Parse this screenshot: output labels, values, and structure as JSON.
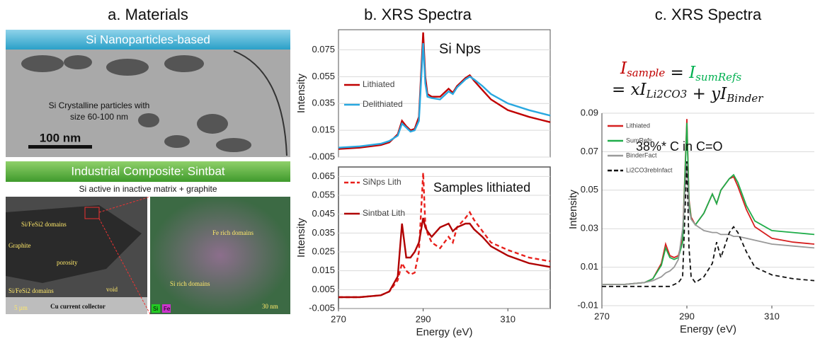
{
  "headings": [
    "a. Materials",
    "b. XRS Spectra",
    "c. XRS Spectra"
  ],
  "panel_a": {
    "banner_top": "Si Nanoparticles-based",
    "tem_note_1": "Si Crystalline particles with",
    "tem_note_2": "size 60-100 nm",
    "tem_scale": "100 nm",
    "banner_bottom": "Industrial Composite: Sintbat",
    "sem_caption": "Si active in inactive matrix + graphite",
    "sem_labels": [
      "Si/FeSi2 domains",
      "Graphite",
      "porosity",
      "Si/FeSi2 domains",
      "void",
      "Cu current collector"
    ],
    "sem_scale": "5 µm",
    "eds_labels": [
      "Fe rich domains",
      "Si rich domains"
    ],
    "eds_legend": [
      "Si",
      "Fe"
    ],
    "eds_scale": "30 nm"
  },
  "chart_data": [
    {
      "type": "line",
      "annotation": "Si Nps",
      "ylabel": "Intensity",
      "grid": true,
      "legend": "left",
      "xlim": [
        270,
        320
      ],
      "ylim": [
        -0.005,
        0.09
      ],
      "yticks": [
        -0.005,
        0.015,
        0.035,
        0.055,
        0.075
      ],
      "x": [
        270,
        275,
        280,
        282,
        284,
        285,
        286,
        287,
        288,
        289,
        290,
        290.5,
        291,
        292,
        294,
        296,
        297,
        298,
        300,
        301,
        302,
        304,
        306,
        310,
        315,
        320
      ],
      "series": [
        {
          "name": "Lithiated",
          "color": "#c00000",
          "dashed": false,
          "values": [
            0.001,
            0.002,
            0.004,
            0.006,
            0.012,
            0.022,
            0.018,
            0.015,
            0.016,
            0.025,
            0.088,
            0.055,
            0.042,
            0.04,
            0.04,
            0.046,
            0.043,
            0.048,
            0.054,
            0.056,
            0.052,
            0.045,
            0.038,
            0.03,
            0.025,
            0.021
          ]
        },
        {
          "name": "Delithiated",
          "color": "#29a8e0",
          "dashed": false,
          "values": [
            0.002,
            0.003,
            0.005,
            0.007,
            0.011,
            0.02,
            0.017,
            0.014,
            0.015,
            0.022,
            0.08,
            0.05,
            0.04,
            0.039,
            0.038,
            0.044,
            0.042,
            0.047,
            0.053,
            0.055,
            0.053,
            0.048,
            0.042,
            0.035,
            0.03,
            0.026
          ]
        }
      ]
    },
    {
      "type": "line",
      "annotation": "Samples lithiated",
      "ylabel": "Intensity",
      "xlabel": "Energy (eV)",
      "grid": true,
      "legend": "left",
      "xlim": [
        270,
        320
      ],
      "xticks": [
        270,
        290,
        310
      ],
      "ylim": [
        -0.005,
        0.07
      ],
      "yticks": [
        -0.005,
        0.005,
        0.015,
        0.025,
        0.035,
        0.045,
        0.055,
        0.065
      ],
      "x": [
        270,
        275,
        280,
        282,
        284,
        285,
        286,
        287,
        288,
        289,
        290,
        290.5,
        291,
        292,
        294,
        296,
        297,
        298,
        300,
        301,
        302,
        304,
        306,
        310,
        315,
        320
      ],
      "series": [
        {
          "name": "SiNps Lith",
          "color": "#e8201c",
          "dashed": true,
          "values": [
            0.001,
            0.001,
            0.002,
            0.004,
            0.01,
            0.019,
            0.015,
            0.013,
            0.014,
            0.025,
            0.067,
            0.04,
            0.035,
            0.03,
            0.027,
            0.033,
            0.03,
            0.038,
            0.043,
            0.046,
            0.042,
            0.036,
            0.03,
            0.026,
            0.022,
            0.02
          ]
        },
        {
          "name": "Sintbat Lith",
          "color": "#b00000",
          "dashed": false,
          "values": [
            0.001,
            0.001,
            0.002,
            0.004,
            0.012,
            0.04,
            0.022,
            0.022,
            0.025,
            0.03,
            0.043,
            0.038,
            0.036,
            0.033,
            0.038,
            0.04,
            0.036,
            0.038,
            0.04,
            0.04,
            0.037,
            0.033,
            0.028,
            0.023,
            0.019,
            0.017
          ]
        }
      ]
    },
    {
      "type": "line",
      "annotation": "38%* C in C=O",
      "ylabel": "Intensity",
      "xlabel": "Energy (eV)",
      "grid": true,
      "legend": "top-left",
      "equation": [
        [
          {
            "text": "I",
            "sub": "sample",
            "color": "#c00000"
          },
          {
            "text": " = ",
            "color": "#111111"
          },
          {
            "text": "I",
            "sub": "sumRefs",
            "color": "#00b050"
          }
        ],
        [
          {
            "text": "= xI",
            "sub": "Li2CO3",
            "color": "#111111"
          },
          {
            "text": " + yI",
            "sub": "Binder",
            "color": "#111111"
          }
        ]
      ],
      "xlim": [
        270,
        320
      ],
      "xticks": [
        270,
        290,
        310
      ],
      "ylim": [
        -0.01,
        0.09
      ],
      "yticks": [
        -0.01,
        0.01,
        0.03,
        0.05,
        0.07,
        0.09
      ],
      "x": [
        270,
        275,
        280,
        282,
        284,
        285,
        286,
        287,
        288,
        289,
        290,
        290.5,
        291,
        292,
        294,
        296,
        297,
        298,
        300,
        301,
        302,
        304,
        306,
        310,
        315,
        320
      ],
      "series": [
        {
          "name": "Lithiated",
          "color": "#d62020",
          "dashed": false,
          "values": [
            0.001,
            0.001,
            0.002,
            0.004,
            0.012,
            0.022,
            0.016,
            0.015,
            0.016,
            0.025,
            0.087,
            0.045,
            0.036,
            0.032,
            0.038,
            0.048,
            0.043,
            0.05,
            0.056,
            0.057,
            0.052,
            0.04,
            0.031,
            0.025,
            0.023,
            0.022
          ]
        },
        {
          "name": "SumRefs",
          "color": "#1fad4a",
          "dashed": false,
          "values": [
            0.001,
            0.001,
            0.002,
            0.004,
            0.011,
            0.02,
            0.015,
            0.014,
            0.015,
            0.023,
            0.085,
            0.044,
            0.035,
            0.032,
            0.038,
            0.048,
            0.043,
            0.05,
            0.056,
            0.058,
            0.054,
            0.042,
            0.034,
            0.029,
            0.028,
            0.027
          ]
        },
        {
          "name": "BinderFact",
          "color": "#999999",
          "dashed": false,
          "values": [
            0.001,
            0.001,
            0.002,
            0.003,
            0.005,
            0.007,
            0.008,
            0.01,
            0.014,
            0.03,
            0.065,
            0.04,
            0.035,
            0.032,
            0.029,
            0.028,
            0.028,
            0.027,
            0.027,
            0.026,
            0.026,
            0.025,
            0.024,
            0.022,
            0.021,
            0.02
          ]
        },
        {
          "name": "Li2CO3rebInfact",
          "color": "#111111",
          "dashed": true,
          "values": [
            0,
            0,
            0,
            0,
            0,
            0,
            0,
            0.001,
            0.002,
            0.005,
            0.065,
            0.02,
            0.005,
            0.002,
            0.005,
            0.012,
            0.023,
            0.015,
            0.028,
            0.031,
            0.028,
            0.018,
            0.01,
            0.006,
            0.004,
            0.003
          ]
        }
      ]
    }
  ]
}
